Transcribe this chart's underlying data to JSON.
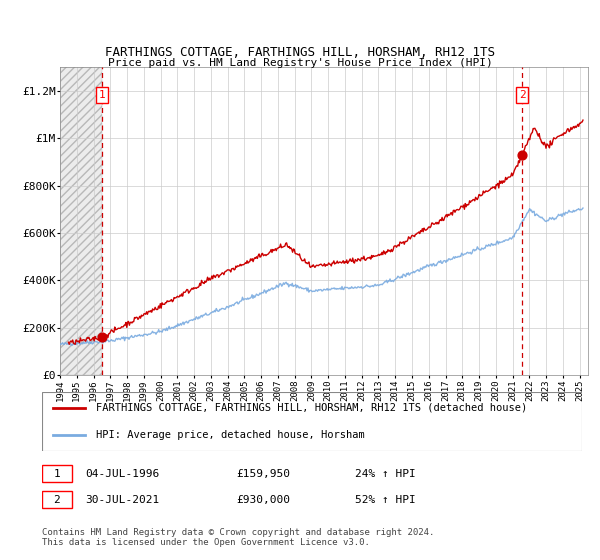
{
  "title": "FARTHINGS COTTAGE, FARTHINGS HILL, HORSHAM, RH12 1TS",
  "subtitle": "Price paid vs. HM Land Registry's House Price Index (HPI)",
  "legend_line1": "FARTHINGS COTTAGE, FARTHINGS HILL, HORSHAM, RH12 1TS (detached house)",
  "legend_line2": "HPI: Average price, detached house, Horsham",
  "transaction1_date": "04-JUL-1996",
  "transaction1_price": "£159,950",
  "transaction1_hpi": "24% ↑ HPI",
  "transaction2_date": "30-JUL-2021",
  "transaction2_price": "£930,000",
  "transaction2_hpi": "52% ↑ HPI",
  "copyright": "Contains HM Land Registry data © Crown copyright and database right 2024.\nThis data is licensed under the Open Government Licence v3.0.",
  "hpi_color": "#7aabe0",
  "price_color": "#cc0000",
  "dot_color": "#cc0000",
  "dashed_color": "#cc0000",
  "ylim": [
    0,
    1300000
  ],
  "xlim_start": 1994.0,
  "xlim_end": 2025.5,
  "transaction1_x": 1996.5,
  "transaction1_y": 159950,
  "transaction2_x": 2021.58,
  "transaction2_y": 930000,
  "yticks": [
    0,
    200000,
    400000,
    600000,
    800000,
    1000000,
    1200000
  ],
  "ytick_labels": [
    "£0",
    "£200K",
    "£400K",
    "£600K",
    "£800K",
    "£1M",
    "£1.2M"
  ],
  "xticks": [
    1994,
    1995,
    1996,
    1997,
    1998,
    1999,
    2000,
    2001,
    2002,
    2003,
    2004,
    2005,
    2006,
    2007,
    2008,
    2009,
    2010,
    2011,
    2012,
    2013,
    2014,
    2015,
    2016,
    2017,
    2018,
    2019,
    2020,
    2021,
    2022,
    2023,
    2024,
    2025
  ]
}
